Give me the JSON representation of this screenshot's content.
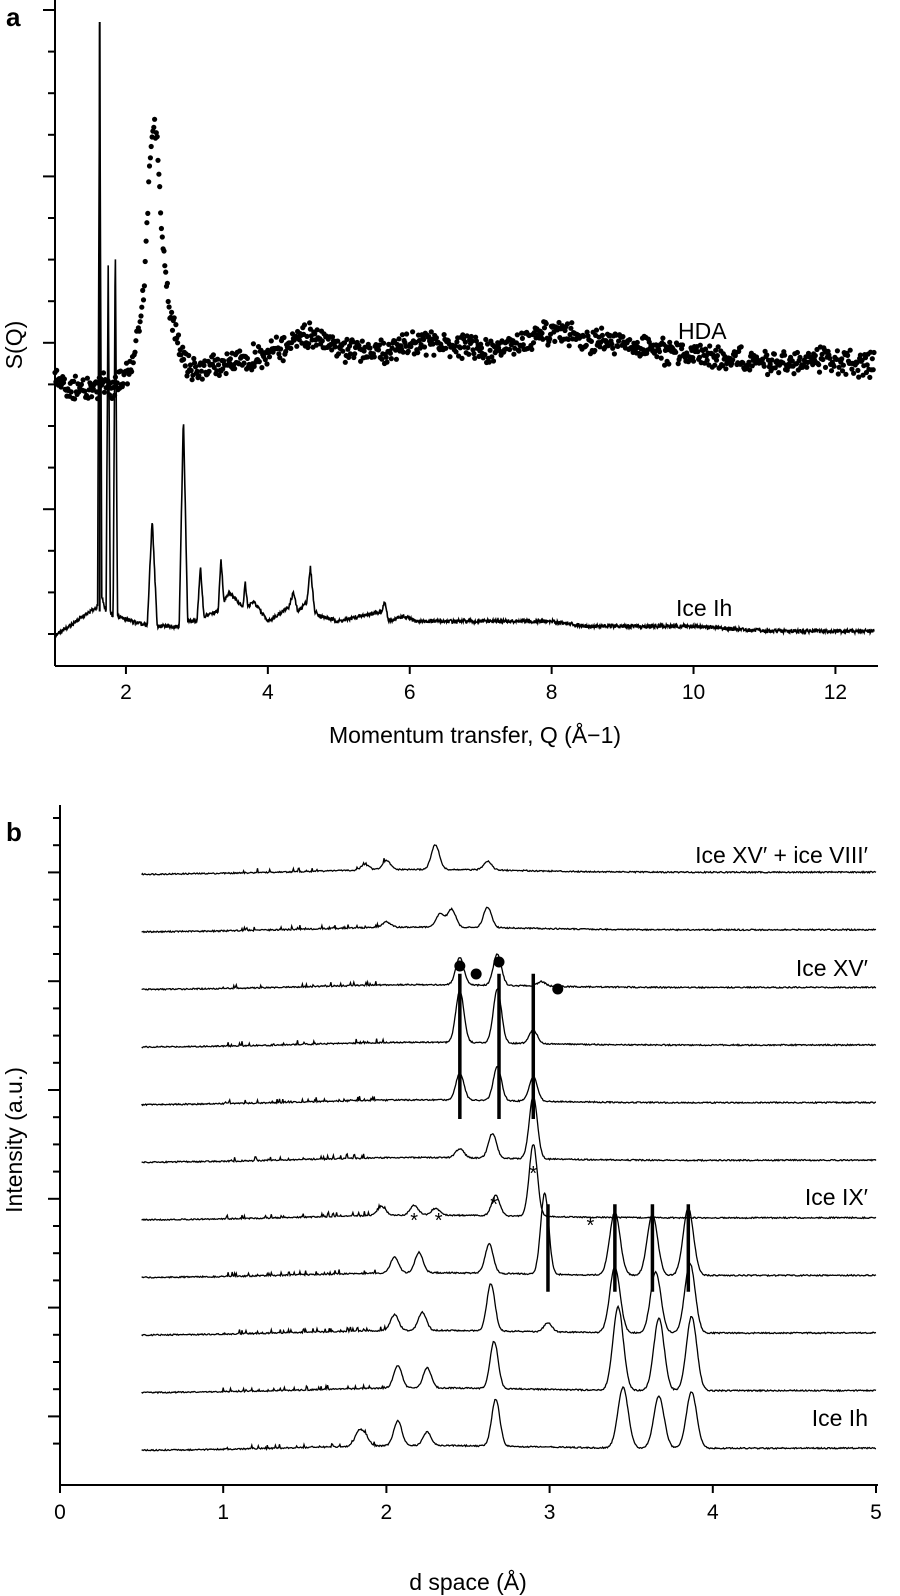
{
  "chart_data": [
    {
      "panel": "a",
      "type": "line",
      "xlabel": "Momentum transfer, Q (Å−1)",
      "ylabel": "S(Q)",
      "xlim": [
        1.0,
        12.6
      ],
      "xticks": [
        "2",
        "4",
        "6",
        "8",
        "10",
        "12"
      ],
      "xtick_values": [
        2,
        4,
        6,
        8,
        10,
        12
      ],
      "series": [
        {
          "name": "HDA",
          "style": "dots",
          "x": [
            1.0,
            1.2,
            1.4,
            1.6,
            1.8,
            2.0,
            2.1,
            2.2,
            2.25,
            2.3,
            2.35,
            2.4,
            2.45,
            2.5,
            2.55,
            2.6,
            2.7,
            2.8,
            2.9,
            3.0,
            3.5,
            4.0,
            4.5,
            4.7,
            5.0,
            5.5,
            6.0,
            6.5,
            7.0,
            7.5,
            8.0,
            8.5,
            9.0,
            9.5,
            10.0,
            10.5,
            11.0,
            11.5,
            12.0,
            12.5
          ],
          "y": [
            0.16,
            0.1,
            0.1,
            0.11,
            0.13,
            0.17,
            0.24,
            0.42,
            0.62,
            0.95,
            1.3,
            1.45,
            1.28,
            0.95,
            0.72,
            0.55,
            0.38,
            0.26,
            0.2,
            0.2,
            0.23,
            0.28,
            0.36,
            0.38,
            0.3,
            0.29,
            0.33,
            0.34,
            0.3,
            0.33,
            0.4,
            0.35,
            0.33,
            0.3,
            0.27,
            0.25,
            0.24,
            0.25,
            0.24,
            0.23
          ]
        },
        {
          "name": "Ice Ih",
          "style": "line",
          "x": [
            1.0,
            1.6,
            1.63,
            1.66,
            1.72,
            1.75,
            1.78,
            1.82,
            1.85,
            1.88,
            2.3,
            2.37,
            2.44,
            2.75,
            2.81,
            2.87,
            3.0,
            3.05,
            3.1,
            3.3,
            3.34,
            3.38,
            3.45,
            3.65,
            3.68,
            3.72,
            3.8,
            4.0,
            4.3,
            4.36,
            4.42,
            4.55,
            4.6,
            4.66,
            4.75,
            5.0,
            5.6,
            5.65,
            5.7,
            5.9,
            6.1,
            7.0,
            7.5,
            8.0,
            8.5,
            9.0,
            10.0,
            11.0,
            12.0,
            12.5
          ],
          "y": [
            0.0,
            0.06,
            1.25,
            0.08,
            0.05,
            0.76,
            0.05,
            0.04,
            0.82,
            0.04,
            0.02,
            0.24,
            0.02,
            0.02,
            0.45,
            0.03,
            0.03,
            0.14,
            0.04,
            0.05,
            0.16,
            0.07,
            0.09,
            0.06,
            0.11,
            0.06,
            0.07,
            0.03,
            0.06,
            0.09,
            0.05,
            0.07,
            0.14,
            0.05,
            0.04,
            0.03,
            0.05,
            0.07,
            0.03,
            0.04,
            0.03,
            0.03,
            0.03,
            0.03,
            0.02,
            0.02,
            0.02,
            0.01,
            0.01,
            0.01
          ]
        }
      ],
      "series_labels": [
        "HDA",
        "Ice Ih"
      ]
    },
    {
      "panel": "b",
      "type": "line",
      "xlabel": "d space (Å)",
      "ylabel": "Intensity (a.u.)",
      "xlim": [
        0,
        5
      ],
      "xticks": [
        "0",
        "1",
        "2",
        "3",
        "4",
        "5"
      ],
      "xtick_values": [
        0,
        1,
        2,
        3,
        4,
        5
      ],
      "series": [
        {
          "name": "Ice XV′ + ice VIII′",
          "peaks": [
            [
              1.87,
              0.12
            ],
            [
              2.0,
              0.2
            ],
            [
              2.3,
              0.55
            ],
            [
              2.62,
              0.2
            ]
          ]
        },
        {
          "name": "",
          "peaks": [
            [
              2.0,
              0.12
            ],
            [
              2.33,
              0.3
            ],
            [
              2.4,
              0.4
            ],
            [
              2.62,
              0.45
            ]
          ]
        },
        {
          "name": "Ice XV′",
          "peaks": [
            [
              2.45,
              0.6
            ],
            [
              2.68,
              0.7
            ],
            [
              2.95,
              0.1
            ]
          ]
        },
        {
          "name": "",
          "peaks": [
            [
              2.45,
              1.15
            ],
            [
              2.68,
              1.2
            ],
            [
              2.9,
              0.3
            ]
          ]
        },
        {
          "name": "",
          "peaks": [
            [
              2.45,
              0.6
            ],
            [
              2.68,
              0.75
            ],
            [
              2.9,
              0.55
            ]
          ]
        },
        {
          "name": "",
          "peaks": [
            [
              2.45,
              0.2
            ],
            [
              2.65,
              0.55
            ],
            [
              2.9,
              1.4
            ]
          ]
        },
        {
          "name": "Ice IX′",
          "peaks": [
            [
              1.97,
              0.2
            ],
            [
              2.17,
              0.22
            ],
            [
              2.3,
              0.15
            ],
            [
              2.67,
              0.45
            ],
            [
              2.9,
              1.6
            ]
          ]
        },
        {
          "name": "",
          "peaks": [
            [
              2.05,
              0.35
            ],
            [
              2.2,
              0.45
            ],
            [
              2.63,
              0.65
            ],
            [
              2.97,
              1.8
            ],
            [
              3.4,
              1.4
            ],
            [
              3.63,
              1.35
            ],
            [
              3.85,
              1.5
            ]
          ]
        },
        {
          "name": "",
          "peaks": [
            [
              2.05,
              0.35
            ],
            [
              2.22,
              0.4
            ],
            [
              2.64,
              1.05
            ],
            [
              2.99,
              0.2
            ],
            [
              3.4,
              1.45
            ],
            [
              3.65,
              1.35
            ],
            [
              3.86,
              1.55
            ]
          ]
        },
        {
          "name": "",
          "peaks": [
            [
              2.07,
              0.5
            ],
            [
              2.25,
              0.45
            ],
            [
              2.66,
              1.05
            ],
            [
              3.42,
              1.85
            ],
            [
              3.67,
              1.6
            ],
            [
              3.87,
              1.65
            ]
          ]
        },
        {
          "name": "Ice Ih",
          "peaks": [
            [
              1.83,
              0.3
            ],
            [
              1.87,
              0.2
            ],
            [
              2.07,
              0.55
            ],
            [
              2.25,
              0.3
            ],
            [
              2.67,
              1.05
            ],
            [
              3.45,
              1.35
            ],
            [
              3.67,
              1.15
            ],
            [
              3.87,
              1.25
            ]
          ]
        }
      ],
      "markers": {
        "bars": [
          {
            "d": 2.45,
            "from_trace": 3,
            "to_trace": 5
          },
          {
            "d": 2.69,
            "from_trace": 3,
            "to_trace": 5
          },
          {
            "d": 2.9,
            "from_trace": 3,
            "to_trace": 5
          },
          {
            "d": 2.99,
            "from_trace": 7,
            "to_trace": 8
          },
          {
            "d": 3.4,
            "from_trace": 7,
            "to_trace": 8
          },
          {
            "d": 3.63,
            "from_trace": 7,
            "to_trace": 8
          },
          {
            "d": 3.85,
            "from_trace": 7,
            "to_trace": 8
          }
        ],
        "dots": [
          2.45,
          2.55,
          2.69,
          3.05
        ],
        "stars": [
          2.17,
          2.32,
          2.66,
          2.9,
          3.25
        ]
      }
    }
  ],
  "panel_letters": {
    "a": "a",
    "b": "b"
  }
}
